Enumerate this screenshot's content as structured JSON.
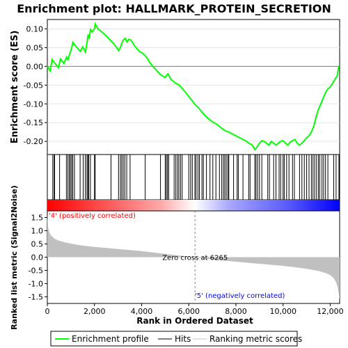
{
  "title": "Enrichment plot: HALLMARK_PROTEIN_SECRETION",
  "colors": {
    "es_line": "#00ff00",
    "hits": "#000000",
    "ranked_fill": "#c0c0c0",
    "label_pos": "#ff0000",
    "label_neg": "#0000ff",
    "zero_cross_line": "#808080",
    "frame": "#000000"
  },
  "chart_data": [
    {
      "type": "line",
      "name": "enrichment-score-panel",
      "ylabel": "Enrichment score (ES)",
      "xlim": [
        0,
        12400
      ],
      "ylim": [
        -0.235,
        0.125
      ],
      "y_ticks": [
        -0.2,
        -0.15,
        -0.1,
        -0.05,
        0.0,
        0.05,
        0.1
      ],
      "y_tick_labels": [
        "-0.20",
        "-0.15",
        "-0.10",
        "-0.05",
        "0.00",
        "0.05",
        "0.10"
      ],
      "grid": true,
      "series": [
        {
          "name": "Enrichment profile",
          "x": [
            0,
            120,
            200,
            330,
            470,
            560,
            700,
            820,
            880,
            960,
            1020,
            1080,
            1150,
            1400,
            1500,
            1620,
            1680,
            1730,
            1780,
            1830,
            1900,
            2000,
            2030,
            2150,
            2350,
            2550,
            2700,
            2850,
            3030,
            3100,
            3160,
            3220,
            3300,
            3380,
            3450,
            3550,
            3700,
            3900,
            4050,
            4200,
            4350,
            4550,
            4800,
            5000,
            5050,
            5120,
            5250,
            5450,
            5600,
            5800,
            6000,
            6150,
            6265,
            6400,
            6600,
            6800,
            7000,
            7200,
            7400,
            7550,
            7700,
            7850,
            8000,
            8150,
            8300,
            8450,
            8550,
            8700,
            8800,
            8900,
            9000,
            9100,
            9200,
            9300,
            9400,
            9500,
            9600,
            9700,
            9800,
            9900,
            10000,
            10100,
            10200,
            10300,
            10400,
            10500,
            10600,
            10700,
            10800,
            10900,
            11000,
            11100,
            11200,
            11300,
            11400,
            11500,
            11600,
            11700,
            11800,
            11900,
            12000,
            12100,
            12200,
            12300,
            12370
          ],
          "y": [
            0.0,
            -0.012,
            0.018,
            0.008,
            -0.003,
            0.02,
            0.008,
            0.025,
            0.018,
            0.035,
            0.045,
            0.064,
            0.058,
            0.04,
            0.052,
            0.038,
            0.062,
            0.085,
            0.074,
            0.098,
            0.092,
            0.1,
            0.113,
            0.1,
            0.09,
            0.078,
            0.068,
            0.058,
            0.042,
            0.05,
            0.062,
            0.07,
            0.075,
            0.065,
            0.072,
            0.07,
            0.055,
            0.04,
            0.035,
            0.025,
            0.01,
            -0.005,
            -0.022,
            -0.03,
            -0.025,
            -0.02,
            -0.035,
            -0.045,
            -0.05,
            -0.065,
            -0.08,
            -0.092,
            -0.102,
            -0.11,
            -0.125,
            -0.138,
            -0.148,
            -0.155,
            -0.165,
            -0.172,
            -0.175,
            -0.18,
            -0.185,
            -0.19,
            -0.195,
            -0.2,
            -0.205,
            -0.21,
            -0.222,
            -0.215,
            -0.205,
            -0.198,
            -0.2,
            -0.205,
            -0.21,
            -0.2,
            -0.205,
            -0.21,
            -0.205,
            -0.2,
            -0.198,
            -0.205,
            -0.21,
            -0.202,
            -0.198,
            -0.195,
            -0.205,
            -0.21,
            -0.205,
            -0.198,
            -0.19,
            -0.185,
            -0.175,
            -0.16,
            -0.135,
            -0.115,
            -0.1,
            -0.085,
            -0.07,
            -0.06,
            -0.055,
            -0.045,
            -0.035,
            -0.025,
            0.002
          ]
        }
      ]
    },
    {
      "type": "scatter",
      "name": "hits-panel",
      "legend_label": "Hits",
      "hits": [
        230,
        290,
        310,
        1390,
        520,
        810,
        870,
        930,
        980,
        1030,
        1080,
        1150,
        1520,
        1610,
        1680,
        1720,
        1760,
        1830,
        2000,
        2030,
        2700,
        3020,
        3100,
        3160,
        3220,
        3290,
        3370,
        3510,
        4150,
        4800,
        5000,
        5050,
        5100,
        5150,
        5380,
        5450,
        5520,
        5580,
        5650,
        5720,
        6000,
        6080,
        6150,
        6260,
        6310,
        6390,
        6450,
        6560,
        6620,
        6750,
        6900,
        7020,
        7150,
        7300,
        7400,
        7470,
        7530,
        7590,
        7660,
        7700,
        7900,
        8050,
        8100,
        8300,
        8540,
        8600,
        8800,
        8850,
        8920,
        9000,
        9100,
        9350,
        9420,
        9600,
        9700,
        9830,
        9900,
        10000,
        10050,
        10150,
        10250,
        10400,
        10480,
        10700,
        10800,
        10900,
        11000,
        11100,
        11200,
        11270,
        11340,
        11420,
        11500,
        11560,
        11650,
        11720,
        11800,
        11900,
        12150,
        12250,
        12370
      ]
    },
    {
      "type": "heatmap",
      "name": "rank-colorbar",
      "xlim": [
        0,
        12400
      ],
      "stops": [
        {
          "x": 0,
          "color": "#ff0000"
        },
        {
          "x": 2600,
          "color": "#ff5a5a"
        },
        {
          "x": 4800,
          "color": "#ffa8a8"
        },
        {
          "x": 6265,
          "color": "#ffffff"
        },
        {
          "x": 7700,
          "color": "#a8a8ff"
        },
        {
          "x": 10200,
          "color": "#5a5aff"
        },
        {
          "x": 12400,
          "color": "#0000ff"
        }
      ]
    },
    {
      "type": "area",
      "name": "ranked-metric-panel",
      "xlabel": "Rank in Ordered Dataset",
      "ylabel": "Ranked list metric (Signal2Noise)",
      "xlim": [
        0,
        12400
      ],
      "ylim": [
        -1.75,
        1.75
      ],
      "x_ticks": [
        0,
        2000,
        4000,
        6000,
        8000,
        10000,
        12000
      ],
      "x_tick_labels": [
        "0",
        "2,000",
        "4,000",
        "6,000",
        "8,000",
        "10,000",
        "12,000"
      ],
      "y_ticks": [
        -1.5,
        -1.0,
        -0.5,
        0.0,
        0.5,
        1.0,
        1.5
      ],
      "y_tick_labels": [
        "-1.5",
        "-1.0",
        "-0.5",
        "0.0",
        "0.5",
        "1.0",
        "1.5"
      ],
      "x": [
        0,
        30,
        80,
        150,
        300,
        500,
        800,
        1200,
        1600,
        2000,
        2500,
        3000,
        3500,
        4000,
        4500,
        5000,
        5500,
        6000,
        6265,
        6600,
        7000,
        7500,
        8000,
        8500,
        9000,
        9500,
        10000,
        10500,
        11000,
        11500,
        11800,
        12000,
        12150,
        12250,
        12320,
        12370,
        12400
      ],
      "values": [
        1.6,
        1.15,
        0.95,
        0.82,
        0.7,
        0.62,
        0.55,
        0.48,
        0.43,
        0.39,
        0.35,
        0.31,
        0.27,
        0.23,
        0.18,
        0.12,
        0.07,
        0.02,
        0.0,
        -0.04,
        -0.09,
        -0.13,
        -0.17,
        -0.21,
        -0.25,
        -0.29,
        -0.33,
        -0.38,
        -0.44,
        -0.52,
        -0.6,
        -0.68,
        -0.8,
        -0.95,
        -1.15,
        -1.45,
        -1.6
      ],
      "zero_cross": 6265,
      "zero_cross_label": "Zero cross at 6265",
      "pos_label": "'4' (positively correlated)",
      "neg_label": "'5' (negatively correlated)"
    }
  ],
  "legend": {
    "items": [
      {
        "key": "es",
        "label": "Enrichment profile"
      },
      {
        "key": "hits",
        "label": "Hits"
      },
      {
        "key": "rank",
        "label": "Ranking metric scores"
      }
    ]
  }
}
